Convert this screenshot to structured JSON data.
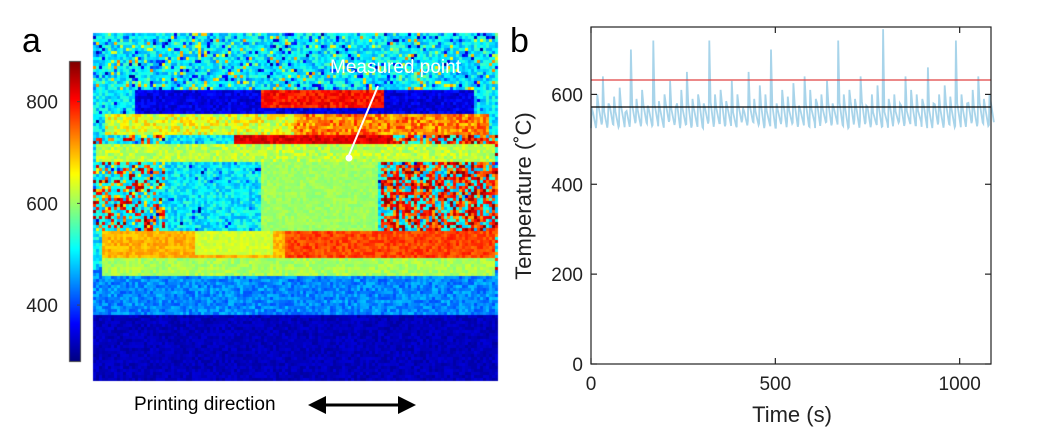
{
  "panel_a": {
    "label": "a",
    "annotation": "Measured point",
    "printing_label": "Printing direction",
    "colorbar": {
      "ticks": [
        400,
        600,
        800
      ],
      "range": [
        290,
        880
      ],
      "colormap": "jet"
    }
  },
  "panel_b": {
    "label": "b"
  },
  "chart_data": [
    {
      "type": "line",
      "title": "",
      "xlabel": "Time (s)",
      "ylabel": "Temperature (˚C)",
      "xlim": [
        0,
        1085
      ],
      "ylim": [
        0,
        750
      ],
      "xticks": [
        0,
        500,
        1000
      ],
      "yticks": [
        0,
        200,
        400,
        600
      ],
      "grid": false,
      "legend": "none",
      "series": [
        {
          "color": "#a8d4ea",
          "baseline": 525,
          "period_s": 15.2,
          "peaks": [
            570,
            600,
            640,
            580,
            595,
            615,
            560,
            700,
            590,
            610,
            575,
            720,
            585,
            600,
            630,
            570,
            610,
            650,
            590,
            600,
            580,
            720,
            600,
            610,
            585,
            630,
            600,
            570,
            650,
            590,
            620,
            600,
            700,
            580,
            610,
            595,
            625,
            575,
            640,
            610,
            590,
            600,
            630,
            580,
            720,
            600,
            610,
            590,
            640,
            575,
            600,
            620,
            745,
            590,
            600,
            580,
            640,
            610,
            600,
            590,
            660,
            580,
            600,
            620,
            595,
            720,
            600,
            580,
            610,
            640,
            590,
            600,
            700,
            580,
            610,
            600,
            640,
            590,
            610,
            600,
            720,
            590,
            600,
            580,
            640,
            610,
            600,
            590,
            660,
            600,
            580,
            620,
            600,
            640,
            590,
            720,
            600,
            610,
            580,
            600,
            640,
            590,
            620,
            600,
            580,
            610,
            600,
            590,
            640,
            600,
            580,
            610,
            600,
            590,
            640,
            600,
            580,
            610,
            600,
            590,
            640,
            600,
            580,
            610,
            600,
            590,
            640,
            600,
            580,
            610,
            600,
            590,
            640,
            600,
            580,
            610,
            600,
            590,
            640,
            600,
            580,
            610,
            600,
            590,
            640,
            600,
            580,
            610,
            600,
            590,
            640,
            600,
            580,
            610,
            600,
            590,
            640,
            600,
            580,
            610,
            600,
            590,
            640,
            600,
            580,
            610,
            600,
            590,
            640,
            600,
            580,
            610,
            600,
            590,
            640,
            600,
            580,
            610,
            600,
            590,
            640,
            600,
            580,
            610,
            600,
            590,
            640,
            600
          ]
        }
      ],
      "reference_lines": [
        {
          "y": 632,
          "color": "#e04040"
        },
        {
          "y": 572,
          "color": "#000000"
        }
      ]
    }
  ]
}
